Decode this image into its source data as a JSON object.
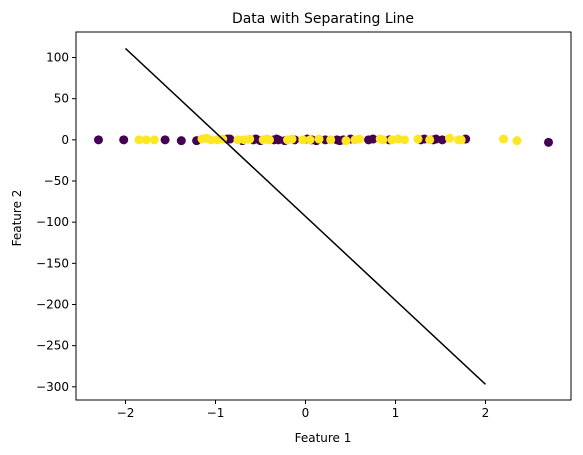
{
  "chart_data": {
    "type": "scatter",
    "title": "Data with Separating Line",
    "xlabel": "Feature 1",
    "ylabel": "Feature 2",
    "xlim": [
      -2.55,
      2.95
    ],
    "ylim": [
      -316,
      131
    ],
    "xticks": [
      -2,
      -1,
      0,
      1,
      2
    ],
    "yticks": [
      100,
      50,
      0,
      -50,
      -100,
      -150,
      -200,
      -250,
      -300
    ],
    "grid": false,
    "legend": "none",
    "colors": {
      "class0": "#440154",
      "class1": "#fde725",
      "line": "#000000"
    },
    "series": [
      {
        "class": 0,
        "points": [
          [
            -2.3,
            0
          ],
          [
            -2.02,
            0
          ],
          [
            -1.56,
            0
          ],
          [
            -1.38,
            -1
          ],
          [
            -1.21,
            -1
          ],
          [
            -0.87,
            1
          ],
          [
            -0.84,
            1
          ],
          [
            -0.7,
            -1
          ],
          [
            -0.58,
            0
          ],
          [
            -0.55,
            1
          ],
          [
            -0.5,
            -1
          ],
          [
            -0.35,
            0
          ],
          [
            -0.32,
            1
          ],
          [
            -0.3,
            0
          ],
          [
            -0.23,
            -1
          ],
          [
            -0.12,
            0
          ],
          [
            0.02,
            1
          ],
          [
            0.07,
            0
          ],
          [
            0.12,
            -1
          ],
          [
            0.22,
            0
          ],
          [
            0.35,
            0
          ],
          [
            0.38,
            -1
          ],
          [
            0.42,
            0
          ],
          [
            0.5,
            1
          ],
          [
            0.7,
            0
          ],
          [
            0.75,
            1
          ],
          [
            0.93,
            0
          ],
          [
            1.28,
            0
          ],
          [
            1.32,
            1
          ],
          [
            1.42,
            0
          ],
          [
            1.45,
            1
          ],
          [
            1.52,
            0
          ],
          [
            1.78,
            1
          ],
          [
            2.7,
            -3
          ]
        ]
      },
      {
        "class": 1,
        "points": [
          [
            -1.85,
            0
          ],
          [
            -1.77,
            0
          ],
          [
            -1.68,
            0
          ],
          [
            -1.15,
            1
          ],
          [
            -1.1,
            2
          ],
          [
            -1.05,
            0
          ],
          [
            -0.98,
            0
          ],
          [
            -0.92,
            1
          ],
          [
            -0.75,
            0
          ],
          [
            -0.68,
            0
          ],
          [
            -0.62,
            1
          ],
          [
            -0.47,
            0
          ],
          [
            -0.43,
            1
          ],
          [
            -0.4,
            0
          ],
          [
            -0.2,
            0
          ],
          [
            -0.15,
            1
          ],
          [
            -0.03,
            0
          ],
          [
            0.05,
            0
          ],
          [
            0.15,
            1
          ],
          [
            0.28,
            0
          ],
          [
            0.45,
            -1
          ],
          [
            0.55,
            0
          ],
          [
            0.6,
            1
          ],
          [
            0.83,
            1
          ],
          [
            0.86,
            0
          ],
          [
            0.96,
            0
          ],
          [
            1.03,
            1
          ],
          [
            1.1,
            0
          ],
          [
            1.25,
            1
          ],
          [
            1.38,
            0
          ],
          [
            1.6,
            2
          ],
          [
            1.7,
            0
          ],
          [
            1.73,
            0
          ],
          [
            2.2,
            1
          ],
          [
            2.35,
            -1
          ]
        ]
      }
    ],
    "line": {
      "x": [
        -2,
        2
      ],
      "y": [
        111,
        -297
      ]
    }
  }
}
